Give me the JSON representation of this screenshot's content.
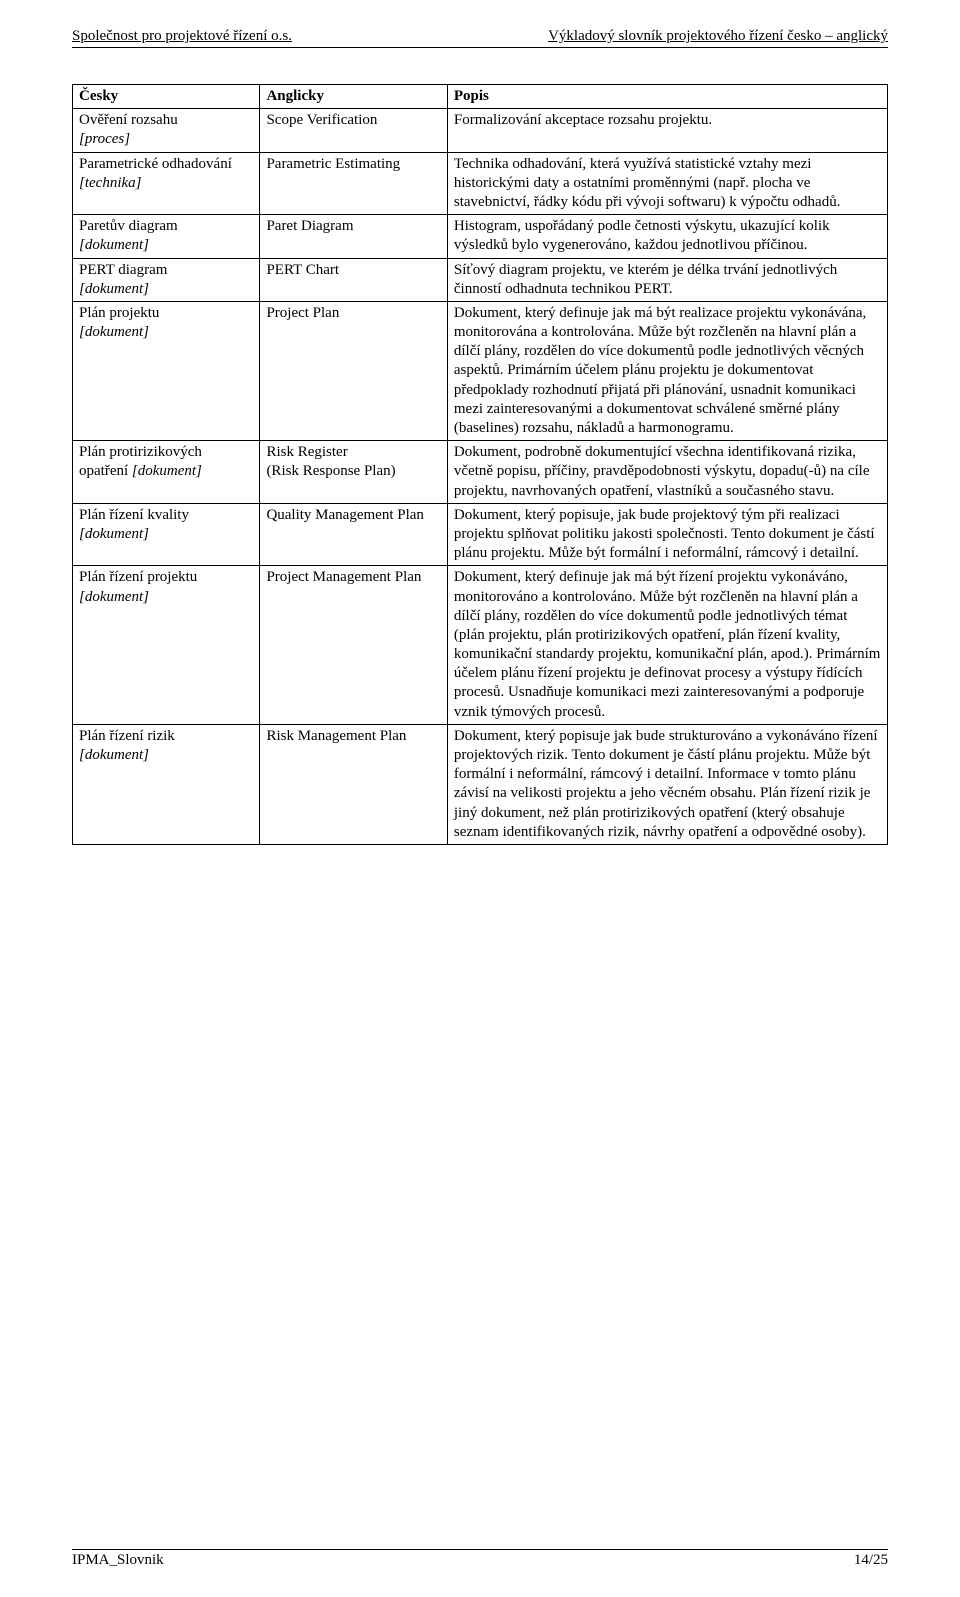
{
  "header": {
    "left": "Společnost pro projektové řízení o.s.",
    "right": "Výkladový slovník projektového řízení česko – anglický"
  },
  "table": {
    "columns": [
      "Česky",
      "Anglicky",
      "Popis"
    ],
    "rows": [
      {
        "term": "Ověření rozsahu",
        "type": "[proces]",
        "en": "Scope Verification",
        "desc": "Formalizování akceptace rozsahu projektu."
      },
      {
        "term": "Parametrické odhadování",
        "type": "[technika]",
        "en": "Parametric Estimating",
        "desc": "Technika odhadování, která využívá statistické vztahy mezi historickými daty a ostatními proměnnými (např. plocha ve stavebnictví, řádky kódu při vývoji softwaru) k výpočtu odhadů."
      },
      {
        "term": "Paretův diagram",
        "type": "[dokument]",
        "en": "Paret Diagram",
        "desc": "Histogram, uspořádaný podle četnosti výskytu, ukazující kolik výsledků bylo vygenerováno, každou jednotlivou příčinou."
      },
      {
        "term": "PERT diagram",
        "type": "[dokument]",
        "en": "PERT Chart",
        "desc": "Síťový diagram projektu, ve kterém je délka trvání jednotlivých činností odhadnuta technikou PERT."
      },
      {
        "term": "Plán projektu",
        "type": "[dokument]",
        "en": "Project Plan",
        "desc": "Dokument, který definuje jak má být realizace projektu vykonávána, monitorována a kontrolována. Může být rozčleněn na hlavní plán a dílčí plány, rozdělen do více dokumentů podle jednotlivých věcných aspektů. Primárním účelem plánu projektu je dokumentovat předpoklady rozhodnutí přijatá při plánování, usnadnit komunikaci mezi zainteresovanými a dokumentovat schválené směrné plány (baselines) rozsahu, nákladů a harmonogramu."
      },
      {
        "term": "Plán protirizikových opatření",
        "type": "[dokument]",
        "en": "Risk Register\n(Risk Response Plan)",
        "desc": "Dokument, podrobně dokumentující všechna identifikovaná rizika, včetně popisu, příčiny, pravděpodobnosti výskytu, dopadu(-ů) na cíle projektu, navrhovaných opatření, vlastníků a současného stavu."
      },
      {
        "term": "Plán řízení kvality",
        "type": "[dokument]",
        "en": "Quality Management Plan",
        "desc": "Dokument, který popisuje, jak bude projektový tým při realizaci projektu splňovat politiku jakosti společnosti. Tento dokument je částí plánu projektu. Může být formální i neformální, rámcový i detailní."
      },
      {
        "term": "Plán řízení projektu",
        "type": "[dokument]",
        "en": "Project Management Plan",
        "desc": "Dokument, který definuje jak má být řízení projektu vykonáváno, monitorováno a kontrolováno. Může být rozčleněn na hlavní plán a dílčí plány, rozdělen do více dokumentů podle jednotlivých témat (plán projektu, plán protirizikových opatření, plán řízení kvality, komunikační standardy projektu, komunikační plán, apod.). Primárním účelem plánu řízení projektu je definovat procesy a výstupy řídících procesů. Usnadňuje komunikaci mezi zainteresovanými a podporuje vznik týmových procesů."
      },
      {
        "term": "Plán řízení rizik",
        "type": "[dokument]",
        "en": "Risk Management Plan",
        "desc": "Dokument, který popisuje jak bude strukturováno a vykonáváno řízení projektových rizik. Tento dokument je částí plánu projektu. Může být formální i neformální, rámcový i detailní. Informace v tomto plánu závisí na velikosti projektu a jeho věcném obsahu. Plán řízení rizik je jiný dokument, než plán protirizikových opatření (který obsahuje seznam identifikovaných rizik, návrhy opatření a odpovědné osoby)."
      }
    ]
  },
  "footer": {
    "left": "IPMA_Slovnik",
    "right": "14/25"
  }
}
